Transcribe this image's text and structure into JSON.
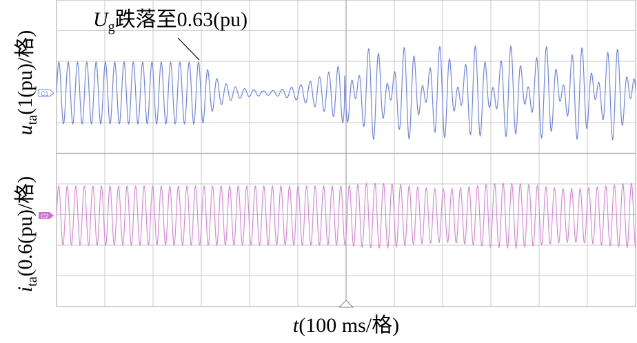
{
  "annotation": {
    "symbol": "U",
    "subscript": "g",
    "text": "跌落至0.63(pu)"
  },
  "y_labels": [
    {
      "symbol": "u",
      "subscript": "ta",
      "text": "(1(pu)/格)"
    },
    {
      "symbol": "i",
      "subscript": "ta",
      "text": "(0.6(pu)/格)"
    }
  ],
  "x_label": {
    "symbol": "t",
    "text": "(100 ms/格)"
  },
  "channels": [
    "C1",
    "C2"
  ]
}
